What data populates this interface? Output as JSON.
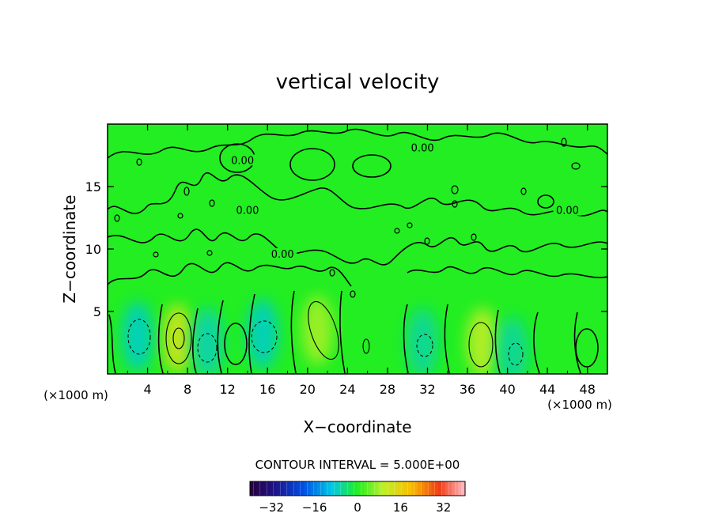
{
  "chart_data": {
    "type": "heatmap",
    "title": "vertical velocity",
    "xlabel": "X−coordinate",
    "ylabel": "Z−coordinate",
    "x_unit_left": "(×1000 m)",
    "x_unit_right": "(×1000 m)",
    "xlim": [
      0,
      50
    ],
    "ylim": [
      0,
      20
    ],
    "x_ticks": [
      4,
      8,
      12,
      16,
      20,
      24,
      28,
      32,
      36,
      40,
      44,
      48
    ],
    "y_ticks": [
      5,
      10,
      15
    ],
    "contour_interval_label": "CONTOUR INTERVAL = 5.000E+00",
    "contour_label_text": "0.00",
    "contour_labels": [
      {
        "x": 31.5,
        "y": 18.0,
        "text": "0.00"
      },
      {
        "x": 13.5,
        "y": 17.0,
        "text": "0.00"
      },
      {
        "x": 46.0,
        "y": 13.0,
        "text": "0.00"
      },
      {
        "x": 14.0,
        "y": 13.0,
        "text": "0.00"
      },
      {
        "x": 17.5,
        "y": 9.5,
        "text": "0.00"
      }
    ],
    "colorbar": {
      "range": [
        -40,
        40
      ],
      "ticks": [
        -32,
        -16,
        0,
        16,
        32
      ]
    },
    "field_features": [
      {
        "x": 7.0,
        "y": 2.8,
        "value": 12,
        "note": "updraft core"
      },
      {
        "x": 21.0,
        "y": 3.5,
        "value": 8,
        "note": "updraft"
      },
      {
        "x": 37.5,
        "y": 2.5,
        "value": 10,
        "note": "updraft core"
      },
      {
        "x": 3.0,
        "y": 3.0,
        "value": -8,
        "note": "downdraft"
      },
      {
        "x": 10.0,
        "y": 2.5,
        "value": -7,
        "note": "downdraft"
      },
      {
        "x": 15.5,
        "y": 3.2,
        "value": -8,
        "note": "downdraft"
      },
      {
        "x": 31.5,
        "y": 2.5,
        "value": -6,
        "note": "downdraft"
      },
      {
        "x": 40.5,
        "y": 1.8,
        "value": -6,
        "note": "downdraft"
      }
    ]
  }
}
